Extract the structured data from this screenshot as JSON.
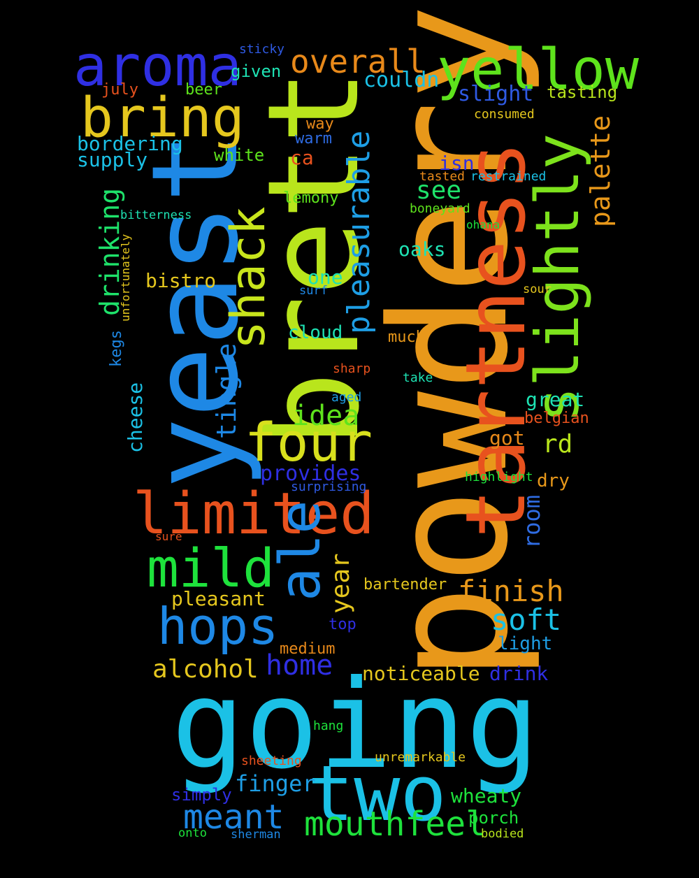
{
  "background": "#000000",
  "words": [
    {
      "text": "powdery",
      "color": "#e8981a"
    },
    {
      "text": "going",
      "color": "#1bc1e6"
    },
    {
      "text": "brett",
      "color": "#b9e51c"
    },
    {
      "text": "yeast",
      "color": "#1e88e5"
    },
    {
      "text": "tartness",
      "color": "#e8521e"
    },
    {
      "text": "two",
      "color": "#1bc1e6"
    },
    {
      "text": "slightly",
      "color": "#7de21c"
    },
    {
      "text": "yellow",
      "color": "#5ee31c"
    },
    {
      "text": "aroma",
      "color": "#2f2fe3"
    },
    {
      "text": "bring",
      "color": "#e5c71e"
    },
    {
      "text": "four",
      "color": "#d8e01d"
    },
    {
      "text": "limited",
      "color": "#e8521e"
    },
    {
      "text": "shack",
      "color": "#c8e51c"
    },
    {
      "text": "ale",
      "color": "#1e88e5"
    },
    {
      "text": "mild",
      "color": "#1ee23c"
    },
    {
      "text": "hops",
      "color": "#1e88e5"
    },
    {
      "text": "overall",
      "color": "#e8891a"
    },
    {
      "text": "pleasurable",
      "color": "#1e9ee5"
    },
    {
      "text": "palette",
      "color": "#e8981a"
    },
    {
      "text": "drinking",
      "color": "#1ee26a"
    },
    {
      "text": "tingle",
      "color": "#1e88e5"
    },
    {
      "text": "mouthfeel",
      "color": "#1ee23c"
    },
    {
      "text": "meant",
      "color": "#1e88e5"
    },
    {
      "text": "idea",
      "color": "#5ee31c"
    },
    {
      "text": "finish",
      "color": "#e8981a"
    },
    {
      "text": "soft",
      "color": "#1bc1e6"
    },
    {
      "text": "home",
      "color": "#2f2fe3"
    },
    {
      "text": "alcohol",
      "color": "#e5c71e"
    },
    {
      "text": "year",
      "color": "#e5c71e"
    },
    {
      "text": "cheese",
      "color": "#1bc1e6"
    },
    {
      "text": "room",
      "color": "#2f6ce3"
    },
    {
      "text": "see",
      "color": "#1ee26a"
    },
    {
      "text": "couldn",
      "color": "#1bc1e6"
    },
    {
      "text": "slight",
      "color": "#2f5ae3"
    },
    {
      "text": "tasting",
      "color": "#b9e51c"
    },
    {
      "text": "consumed",
      "color": "#e5c71e"
    },
    {
      "text": "bordering",
      "color": "#1bc1e6"
    },
    {
      "text": "supply",
      "color": "#1bc1e6"
    },
    {
      "text": "given",
      "color": "#1ee2b3"
    },
    {
      "text": "beer",
      "color": "#5ee31c"
    },
    {
      "text": "july",
      "color": "#e8521e"
    },
    {
      "text": "sticky",
      "color": "#2f5ae3"
    },
    {
      "text": "way",
      "color": "#e8891a"
    },
    {
      "text": "warm",
      "color": "#2f6ce3"
    },
    {
      "text": "white",
      "color": "#5ee31c"
    },
    {
      "text": "ca",
      "color": "#e8521e"
    },
    {
      "text": "isn",
      "color": "#2f2fe3"
    },
    {
      "text": "tasted",
      "color": "#e8891a"
    },
    {
      "text": "restrained",
      "color": "#1bc1e6"
    },
    {
      "text": "lemony",
      "color": "#5ee31c"
    },
    {
      "text": "boneyard",
      "color": "#5ee31c"
    },
    {
      "text": "ohana",
      "color": "#1ee23c"
    },
    {
      "text": "bitterness",
      "color": "#1ee2b3"
    },
    {
      "text": "unfortunately",
      "color": "#e5c71e"
    },
    {
      "text": "oaks",
      "color": "#1ee2b3"
    },
    {
      "text": "one",
      "color": "#1ee2b3"
    },
    {
      "text": "bistro",
      "color": "#e5c71e"
    },
    {
      "text": "surf",
      "color": "#1e88e5"
    },
    {
      "text": "sour",
      "color": "#e5c71e"
    },
    {
      "text": "cloud",
      "color": "#1ee2b3"
    },
    {
      "text": "much",
      "color": "#e8981a"
    },
    {
      "text": "kegs",
      "color": "#1e88e5"
    },
    {
      "text": "sharp",
      "color": "#e8521e"
    },
    {
      "text": "take",
      "color": "#1ee2b3"
    },
    {
      "text": "aged",
      "color": "#1e9ee5"
    },
    {
      "text": "great",
      "color": "#1ee2b3"
    },
    {
      "text": "belgian",
      "color": "#e8521e"
    },
    {
      "text": "got",
      "color": "#e8891a"
    },
    {
      "text": "rd",
      "color": "#b9e51c"
    },
    {
      "text": "provides",
      "color": "#2f2fe3"
    },
    {
      "text": "surprising",
      "color": "#2f5ae3"
    },
    {
      "text": "highlight",
      "color": "#1ee23c"
    },
    {
      "text": "dry",
      "color": "#e8981a"
    },
    {
      "text": "sure",
      "color": "#e8521e"
    },
    {
      "text": "bartender",
      "color": "#e5c71e"
    },
    {
      "text": "pleasant",
      "color": "#e5c71e"
    },
    {
      "text": "top",
      "color": "#2f2fe3"
    },
    {
      "text": "light",
      "color": "#1e9ee5"
    },
    {
      "text": "medium",
      "color": "#e8891a"
    },
    {
      "text": "noticeable",
      "color": "#e5c71e"
    },
    {
      "text": "drink",
      "color": "#2f2fe3"
    },
    {
      "text": "hang",
      "color": "#1ee23c"
    },
    {
      "text": "sheeting",
      "color": "#e8521e"
    },
    {
      "text": "unremarkable",
      "color": "#e5c71e"
    },
    {
      "text": "finger",
      "color": "#1e9ee5"
    },
    {
      "text": "simply",
      "color": "#2f2fe3"
    },
    {
      "text": "wheaty",
      "color": "#1ee23c"
    },
    {
      "text": "porch",
      "color": "#1ee23c"
    },
    {
      "text": "onto",
      "color": "#1ee23c"
    },
    {
      "text": "sherman",
      "color": "#1e88e5"
    },
    {
      "text": "bodied",
      "color": "#b9e51c"
    }
  ]
}
